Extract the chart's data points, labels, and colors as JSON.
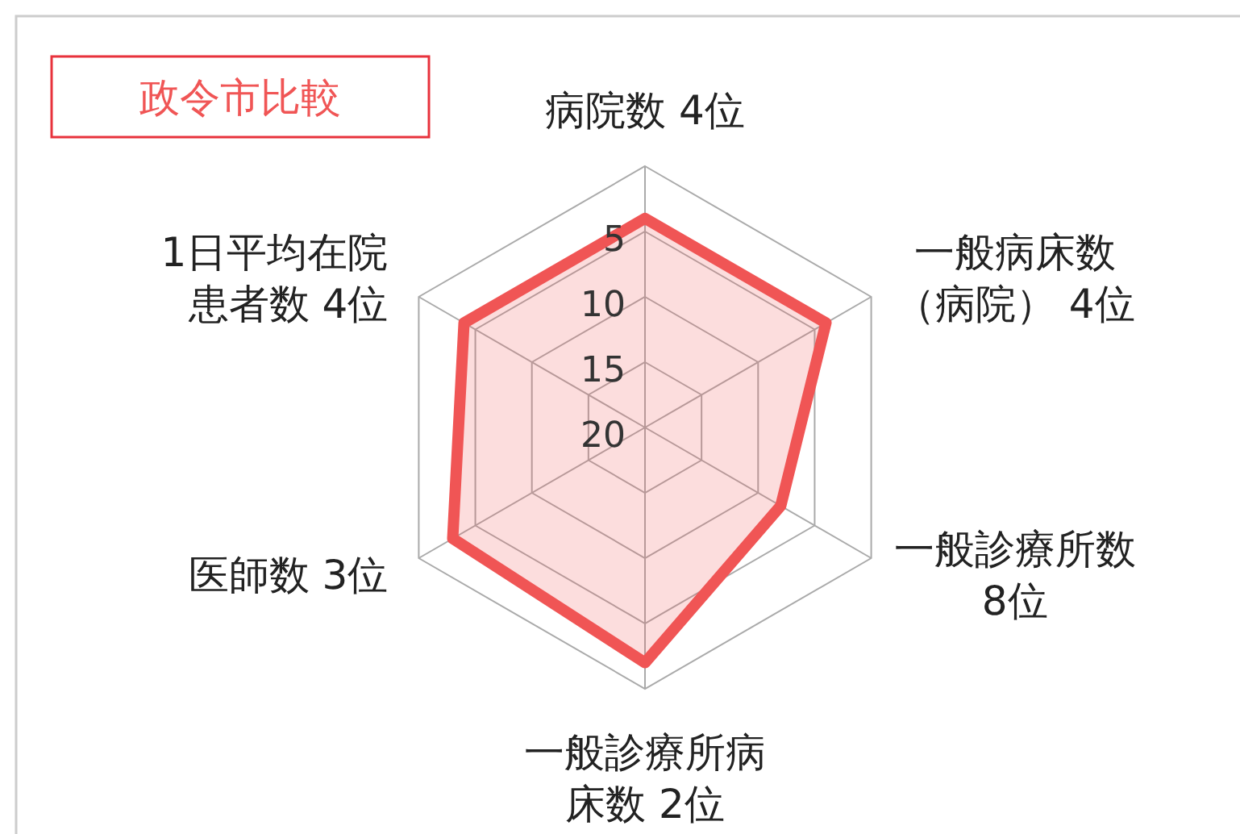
{
  "chart_data": {
    "type": "radar",
    "title": "政令市比較",
    "categories": [
      "病院数  4位",
      "一般病床数（病院）  4位",
      "一般診療所数8位",
      "一般診療所病床数  2位",
      "医師数  3位",
      "1日平均在院患者数  4位"
    ],
    "series": [
      {
        "color": "#f05555",
        "values": [
          4,
          4,
          8,
          2,
          3,
          4
        ]
      }
    ],
    "ylim": [
      20,
      0
    ],
    "yticks": [
      5,
      10,
      15,
      20
    ],
    "grid": true
  }
}
